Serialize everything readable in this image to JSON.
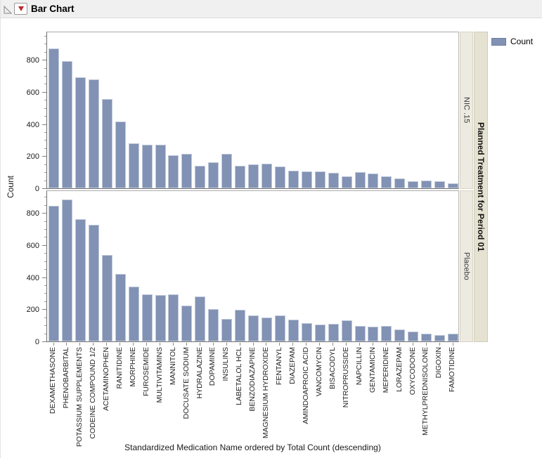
{
  "window": {
    "title": "Bar Chart"
  },
  "icons": {
    "disclosure": "disclosure-open-triangle-icon",
    "hotspot": "red-triangle-menu-icon"
  },
  "legend": {
    "label": "Count",
    "swatch_color": "#8192b4",
    "position": "top-right"
  },
  "facet": {
    "title": "Planned Treatment for Period 01",
    "levels": [
      "NIC .15",
      "Placebo"
    ]
  },
  "chart_data": {
    "type": "bar",
    "title": "Bar Chart",
    "xlabel": "Standardized Medication Name ordered by Total Count (descending)",
    "ylabel": "Count",
    "ylim": [
      0,
      950
    ],
    "yticks": [
      0,
      200,
      400,
      600,
      800
    ],
    "minor_tick_step": 50,
    "grid": false,
    "legend_entries": [
      "Count"
    ],
    "facet_by": "Planned Treatment for Period 01",
    "bar_color": "#8192b4",
    "categories": [
      "DEXAMETHASONE",
      "PHENOBARBITAL",
      "POTASSIUM SUPPLEMENTS",
      "CODEINE COMPOUND 1/2",
      "ACETAMINOPHEN",
      "RANITIDINE",
      "MORPHINE",
      "FUROSEMIDE",
      "MULTIVITAMINS",
      "MANNITOL",
      "DOCUSATE SODIUM",
      "HYDRALAZINE",
      "DOPAMINE",
      "INSULINS",
      "LABETALOL HCL",
      "BENZODIAZAPINE",
      "MAGNESIUM HYDROXIDE",
      "FENTANYL",
      "DIAZEPAM",
      "AMINDOAPROIC ACID",
      "VANCOMYCIN",
      "BISACODYL",
      "NITROPRUSSIDE",
      "NAPCILLIN",
      "GENTAMICIN",
      "MEPERIDINE",
      "LORAZEPAM",
      "OXYCODONE",
      "METHYLPREDNISOLONE",
      "DIGOXIN",
      "FAMOTIDINE"
    ],
    "series": [
      {
        "name": "NIC .15",
        "values": [
          870,
          790,
          690,
          680,
          555,
          415,
          280,
          270,
          270,
          205,
          215,
          140,
          160,
          215,
          140,
          150,
          155,
          135,
          110,
          105,
          105,
          95,
          75,
          100,
          90,
          75,
          60,
          42,
          50,
          45,
          30
        ]
      },
      {
        "name": "Placebo",
        "values": [
          845,
          885,
          760,
          725,
          540,
          420,
          340,
          295,
          290,
          295,
          225,
          280,
          200,
          140,
          195,
          160,
          150,
          160,
          135,
          115,
          105,
          110,
          130,
          95,
          90,
          95,
          75,
          60,
          50,
          40,
          50
        ]
      }
    ]
  },
  "colors": {
    "titlebar_bg": "#f0f0f0",
    "plot_frame": "#a9a9a9",
    "strip_light": "#edebe1",
    "strip_dark": "#e5e2d2",
    "hotspot_red": "#c1272d"
  }
}
